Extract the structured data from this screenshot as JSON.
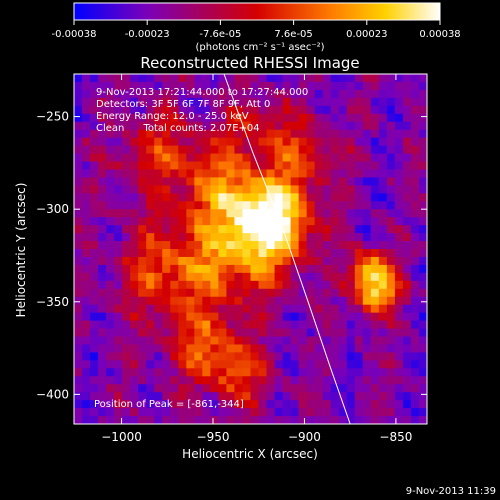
{
  "colorbar": {
    "tick_labels": [
      "-0.00038",
      "-0.00023",
      "-7.6e-05",
      "7.6e-05",
      "0.00023",
      "0.00038"
    ],
    "units_label": "(photons cm⁻² s⁻¹ asec⁻²)",
    "range": [
      -0.00038,
      0.00038
    ],
    "colors": [
      "#0000ff",
      "#7a00b8",
      "#d40000",
      "#ff7a00",
      "#ffd000",
      "#ffffff"
    ]
  },
  "header": {
    "time_range": "9-Nov-2013 17:21:44.000 to 17:27:44.000",
    "detectors": "Detectors: 3F 5F 6F 7F 8F 9F, Att 0",
    "energy_range": "Energy Range: 12.0 - 25.0 keV",
    "clean_counts": "Clean      Total counts: 2.07E+04"
  },
  "peak_label": "Position of Peak = [-861,-344]",
  "footer": "9-Nov-2013 11:39",
  "chart_data": {
    "type": "heatmap",
    "title": "Reconstructed RHESSI Image",
    "xlabel": "Heliocentric X (arcsec)",
    "ylabel": "Heliocentric Y (arcsec)",
    "xlim": [
      -1026,
      -833
    ],
    "ylim": [
      -416,
      -227
    ],
    "x_ticks": [
      -1000,
      -950,
      -900,
      -850
    ],
    "y_ticks": [
      -250,
      -300,
      -350,
      -400
    ],
    "x_tick_labels": [
      "−1000",
      "−950",
      "−900",
      "−850"
    ],
    "y_tick_labels": [
      "−250",
      "−300",
      "−350",
      "−400"
    ],
    "peak": [
      -861,
      -344
    ],
    "limb_curve": [
      [
        -944,
        -227
      ],
      [
        -928,
        -270
      ],
      [
        -912,
        -310
      ],
      [
        -898,
        -350
      ],
      [
        -886,
        -385
      ],
      [
        -875,
        -416
      ]
    ]
  }
}
